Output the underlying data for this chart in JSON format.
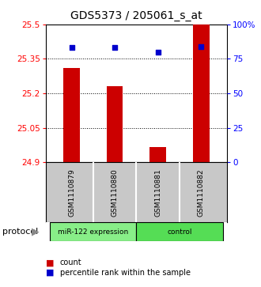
{
  "title": "GDS5373 / 205061_s_at",
  "samples": [
    "GSM1110879",
    "GSM1110880",
    "GSM1110881",
    "GSM1110882"
  ],
  "bar_values": [
    25.31,
    25.23,
    24.965,
    25.5
  ],
  "percentile_values": [
    83,
    83,
    80,
    84
  ],
  "y_min": 24.9,
  "y_max": 25.5,
  "y_ticks": [
    24.9,
    25.05,
    25.2,
    25.35,
    25.5
  ],
  "y_right_ticks": [
    0,
    25,
    50,
    75,
    100
  ],
  "bar_color": "#cc0000",
  "percentile_color": "#0000cc",
  "bar_width": 0.38,
  "groups": [
    {
      "label": "miR-122 expression",
      "color": "#88ee88"
    },
    {
      "label": "control",
      "color": "#55dd55"
    }
  ],
  "protocol_label": "protocol",
  "background_color": "#ffffff",
  "plot_bg_color": "#ffffff",
  "sample_bg_color": "#c8c8c8",
  "title_fontsize": 10,
  "tick_fontsize": 7.5,
  "sample_fontsize": 6.5,
  "legend_fontsize": 7
}
